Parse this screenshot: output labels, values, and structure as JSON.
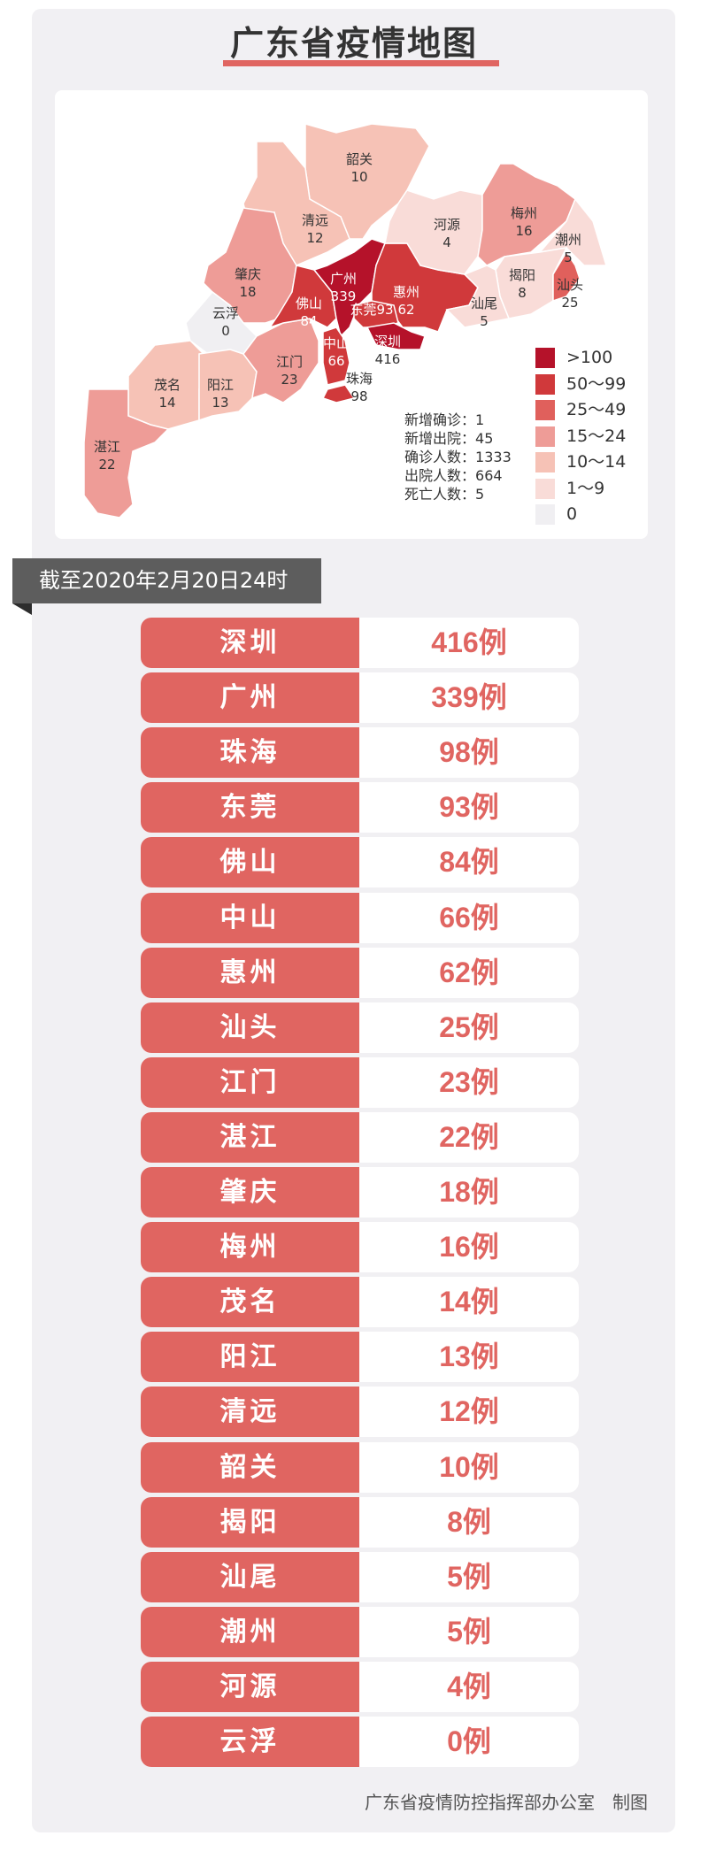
{
  "title": "广东省疫情地图",
  "date_banner": "截至2020年2月20日24时",
  "colors": {
    "accent": "#e06561",
    "banner": "#5d5d5d",
    "scale": [
      "#b5122a",
      "#d0393b",
      "#e0605c",
      "#ee9c97",
      "#f6c2b6",
      "#f9dcd8",
      "#f0eff2"
    ]
  },
  "legend": [
    ">100",
    "50～99",
    "25～49",
    "15～24",
    "10～14",
    "1～9",
    "0"
  ],
  "stats": [
    {
      "label": "新增确诊",
      "value": "1"
    },
    {
      "label": "新增出院",
      "value": "45"
    },
    {
      "label": "确诊人数",
      "value": "1333"
    },
    {
      "label": "出院人数",
      "value": "664"
    },
    {
      "label": "死亡人数",
      "value": "5"
    }
  ],
  "map_regions": [
    {
      "name": "韶关",
      "value": "10"
    },
    {
      "name": "清远",
      "value": "12"
    },
    {
      "name": "肇庆",
      "value": "18"
    },
    {
      "name": "云浮",
      "value": "0"
    },
    {
      "name": "茂名",
      "value": "14"
    },
    {
      "name": "阳江",
      "value": "13"
    },
    {
      "name": "江门",
      "value": "23"
    },
    {
      "name": "湛江",
      "value": "22"
    },
    {
      "name": "佛山",
      "value": "84"
    },
    {
      "name": "广州",
      "value": "339"
    },
    {
      "name": "中山",
      "value": "66"
    },
    {
      "name": "惠州",
      "value": "62"
    },
    {
      "name": "东莞",
      "value": "93"
    },
    {
      "name": "深圳",
      "value": "416"
    },
    {
      "name": "河源",
      "value": "4"
    },
    {
      "name": "梅州",
      "value": "16"
    },
    {
      "name": "潮州",
      "value": "5"
    },
    {
      "name": "揭阳",
      "value": "8"
    },
    {
      "name": "汕头",
      "value": "25"
    },
    {
      "name": "汕尾",
      "value": "5"
    },
    {
      "name": "珠海",
      "value": "98"
    }
  ],
  "ranking": [
    {
      "city": "深圳",
      "count": "416例"
    },
    {
      "city": "广州",
      "count": "339例"
    },
    {
      "city": "珠海",
      "count": "98例"
    },
    {
      "city": "东莞",
      "count": "93例"
    },
    {
      "city": "佛山",
      "count": "84例"
    },
    {
      "city": "中山",
      "count": "66例"
    },
    {
      "city": "惠州",
      "count": "62例"
    },
    {
      "city": "汕头",
      "count": "25例"
    },
    {
      "city": "江门",
      "count": "23例"
    },
    {
      "city": "湛江",
      "count": "22例"
    },
    {
      "city": "肇庆",
      "count": "18例"
    },
    {
      "city": "梅州",
      "count": "16例"
    },
    {
      "city": "茂名",
      "count": "14例"
    },
    {
      "city": "阳江",
      "count": "13例"
    },
    {
      "city": "清远",
      "count": "12例"
    },
    {
      "city": "韶关",
      "count": "10例"
    },
    {
      "city": "揭阳",
      "count": "8例"
    },
    {
      "city": "汕尾",
      "count": "5例"
    },
    {
      "city": "潮州",
      "count": "5例"
    },
    {
      "city": "河源",
      "count": "4例"
    },
    {
      "city": "云浮",
      "count": "0例"
    }
  ],
  "footer": "广东省疫情防控指挥部办公室　制图"
}
